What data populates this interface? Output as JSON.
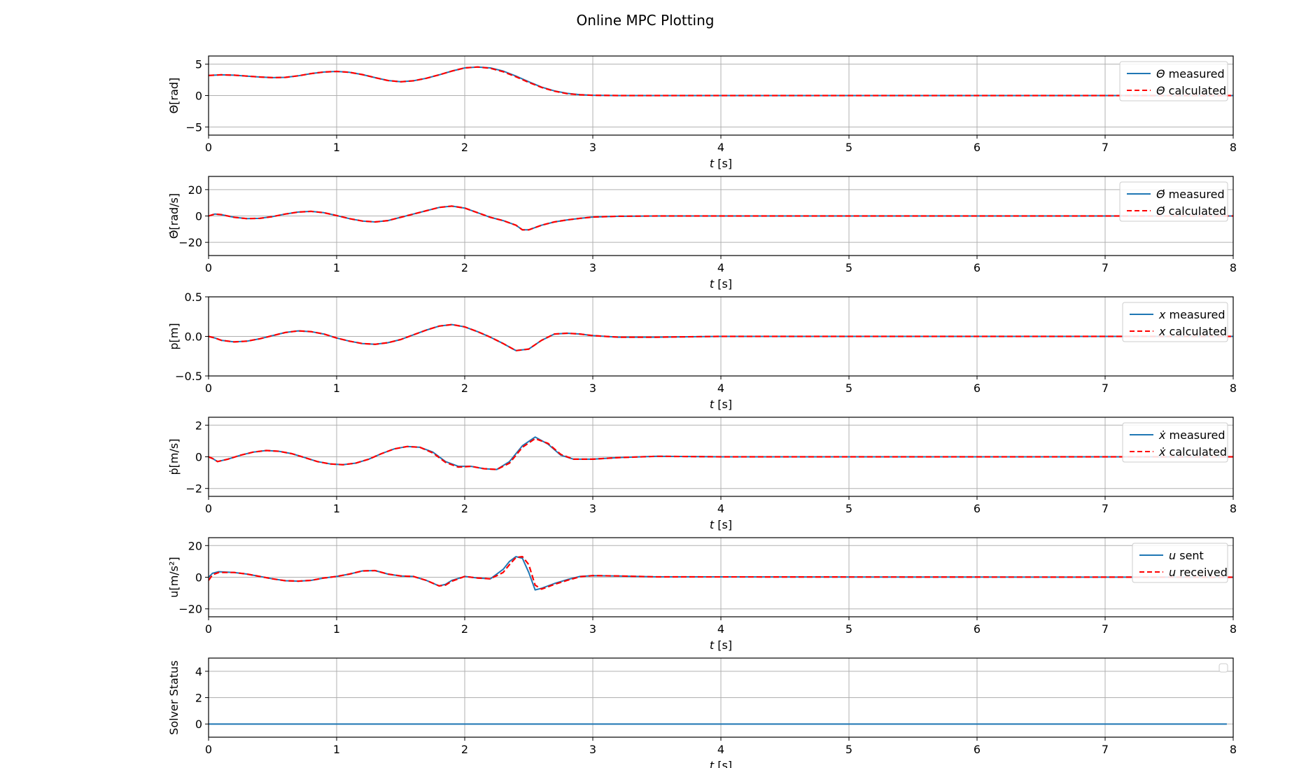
{
  "window": {
    "title": "Online MPC Plotting"
  },
  "colors": {
    "measured": "#1f77b4",
    "calculated": "#ff0000",
    "grid": "#b0b0b0",
    "frame": "#000000"
  },
  "chart_data": [
    {
      "type": "line",
      "ylabel": "Θ[rad]",
      "xlabel_var": "t",
      "xlabel_unit": " [s]",
      "xlim": [
        0,
        8
      ],
      "ylim": [
        -6.3,
        6.3
      ],
      "xticks": [
        0,
        1,
        2,
        3,
        4,
        5,
        6,
        7,
        8
      ],
      "yticks": [
        -5,
        0,
        5
      ],
      "ytick_labels": [
        "−5",
        "0",
        "5"
      ],
      "grid": true,
      "legend_position": "top-right",
      "series": [
        {
          "name": "Θ measured",
          "legend_var": "Θ",
          "legend_suffix": " measured",
          "style": "solid",
          "color": "#1f77b4",
          "x": [
            0,
            0.1,
            0.2,
            0.3,
            0.4,
            0.5,
            0.6,
            0.7,
            0.8,
            0.9,
            1.0,
            1.1,
            1.2,
            1.3,
            1.4,
            1.5,
            1.6,
            1.7,
            1.8,
            1.9,
            2.0,
            2.1,
            2.2,
            2.3,
            2.4,
            2.5,
            2.6,
            2.7,
            2.8,
            2.9,
            3.0,
            3.2,
            3.5,
            4.0,
            8.0
          ],
          "y": [
            3.2,
            3.3,
            3.25,
            3.1,
            2.95,
            2.85,
            2.9,
            3.15,
            3.5,
            3.75,
            3.85,
            3.7,
            3.35,
            2.85,
            2.4,
            2.2,
            2.35,
            2.75,
            3.3,
            3.9,
            4.4,
            4.55,
            4.4,
            3.9,
            3.1,
            2.2,
            1.35,
            0.75,
            0.35,
            0.15,
            0.05,
            0.0,
            0.0,
            0.0,
            0.0
          ]
        },
        {
          "name": "Θ calculated",
          "legend_var": "Θ",
          "legend_suffix": " calculated",
          "style": "dashed",
          "color": "#ff0000",
          "x": [
            0,
            0.1,
            0.2,
            0.3,
            0.4,
            0.5,
            0.6,
            0.7,
            0.8,
            0.9,
            1.0,
            1.1,
            1.2,
            1.3,
            1.4,
            1.5,
            1.6,
            1.7,
            1.8,
            1.9,
            2.0,
            2.1,
            2.2,
            2.3,
            2.4,
            2.5,
            2.6,
            2.7,
            2.8,
            2.9,
            3.0,
            3.2,
            3.5,
            4.0,
            8.0
          ],
          "y": [
            3.2,
            3.3,
            3.25,
            3.1,
            2.95,
            2.85,
            2.9,
            3.15,
            3.5,
            3.75,
            3.85,
            3.7,
            3.35,
            2.85,
            2.4,
            2.2,
            2.35,
            2.75,
            3.3,
            3.9,
            4.4,
            4.55,
            4.35,
            3.8,
            3.0,
            2.1,
            1.3,
            0.7,
            0.3,
            0.12,
            0.04,
            0.0,
            0.0,
            0.0,
            0.0
          ]
        }
      ]
    },
    {
      "type": "line",
      "ylabel": "Θ̇[rad/s]",
      "xlabel_var": "t",
      "xlabel_unit": " [s]",
      "xlim": [
        0,
        8
      ],
      "ylim": [
        -30,
        30
      ],
      "xticks": [
        0,
        1,
        2,
        3,
        4,
        5,
        6,
        7,
        8
      ],
      "yticks": [
        -20,
        0,
        20
      ],
      "ytick_labels": [
        "−20",
        "0",
        "20"
      ],
      "grid": true,
      "legend_position": "top-right",
      "series": [
        {
          "name": "Θ̇ measured",
          "legend_var": "Θ̇",
          "legend_suffix": " measured",
          "style": "solid",
          "color": "#1f77b4",
          "x": [
            0,
            0.05,
            0.1,
            0.2,
            0.3,
            0.4,
            0.5,
            0.6,
            0.7,
            0.8,
            0.9,
            1.0,
            1.1,
            1.2,
            1.3,
            1.4,
            1.5,
            1.6,
            1.7,
            1.8,
            1.9,
            2.0,
            2.1,
            2.2,
            2.3,
            2.4,
            2.45,
            2.5,
            2.6,
            2.7,
            2.8,
            2.9,
            3.0,
            3.2,
            3.5,
            8.0
          ],
          "y": [
            0,
            1.5,
            1.0,
            -1.0,
            -2.0,
            -1.8,
            -0.5,
            1.5,
            3.0,
            3.5,
            2.5,
            0.3,
            -2.0,
            -3.8,
            -4.5,
            -3.5,
            -1.0,
            1.5,
            4.0,
            6.5,
            7.5,
            6.0,
            2.5,
            -1.0,
            -3.5,
            -7.0,
            -10.5,
            -10.5,
            -7.0,
            -4.5,
            -3.0,
            -1.8,
            -0.8,
            -0.2,
            0,
            0
          ]
        },
        {
          "name": "Θ̇ calculated",
          "legend_var": "Θ̇",
          "legend_suffix": " calculated",
          "style": "dashed",
          "color": "#ff0000",
          "x": [
            0,
            0.05,
            0.1,
            0.2,
            0.3,
            0.4,
            0.5,
            0.6,
            0.7,
            0.8,
            0.9,
            1.0,
            1.1,
            1.2,
            1.3,
            1.4,
            1.5,
            1.6,
            1.7,
            1.8,
            1.9,
            2.0,
            2.1,
            2.2,
            2.3,
            2.4,
            2.45,
            2.5,
            2.6,
            2.7,
            2.8,
            2.9,
            3.0,
            3.2,
            3.5,
            8.0
          ],
          "y": [
            0,
            1.5,
            1.0,
            -1.0,
            -2.0,
            -1.8,
            -0.5,
            1.5,
            3.0,
            3.5,
            2.5,
            0.3,
            -2.0,
            -3.8,
            -4.5,
            -3.5,
            -1.0,
            1.5,
            4.0,
            6.5,
            7.5,
            6.0,
            2.5,
            -1.0,
            -3.5,
            -7.0,
            -10.5,
            -10.5,
            -7.0,
            -4.5,
            -3.0,
            -1.8,
            -0.8,
            -0.2,
            0,
            0
          ]
        }
      ]
    },
    {
      "type": "line",
      "ylabel": "p[m]",
      "xlabel_var": "t",
      "xlabel_unit": " [s]",
      "xlim": [
        0,
        8
      ],
      "ylim": [
        -0.5,
        0.5
      ],
      "xticks": [
        0,
        1,
        2,
        3,
        4,
        5,
        6,
        7,
        8
      ],
      "yticks": [
        -0.5,
        0.0,
        0.5
      ],
      "ytick_labels": [
        "−0.5",
        "0.0",
        "0.5"
      ],
      "grid": true,
      "legend_position": "top-right",
      "series": [
        {
          "name": "x measured",
          "legend_var": "x",
          "legend_suffix": " measured",
          "style": "solid",
          "color": "#1f77b4",
          "x": [
            0,
            0.05,
            0.1,
            0.2,
            0.3,
            0.4,
            0.5,
            0.6,
            0.7,
            0.8,
            0.9,
            1.0,
            1.1,
            1.2,
            1.3,
            1.4,
            1.5,
            1.6,
            1.7,
            1.8,
            1.9,
            2.0,
            2.1,
            2.2,
            2.3,
            2.4,
            2.5,
            2.6,
            2.7,
            2.8,
            2.9,
            3.0,
            3.2,
            3.5,
            4.0,
            8.0
          ],
          "y": [
            0,
            -0.02,
            -0.05,
            -0.07,
            -0.06,
            -0.03,
            0.01,
            0.05,
            0.07,
            0.06,
            0.03,
            -0.02,
            -0.06,
            -0.09,
            -0.1,
            -0.08,
            -0.04,
            0.02,
            0.08,
            0.13,
            0.15,
            0.12,
            0.06,
            -0.01,
            -0.09,
            -0.18,
            -0.16,
            -0.05,
            0.03,
            0.04,
            0.03,
            0.01,
            -0.01,
            -0.01,
            0.0,
            0.0
          ]
        },
        {
          "name": "x calculated",
          "legend_var": "x",
          "legend_suffix": " calculated",
          "style": "dashed",
          "color": "#ff0000",
          "x": [
            0,
            0.05,
            0.1,
            0.2,
            0.3,
            0.4,
            0.5,
            0.6,
            0.7,
            0.8,
            0.9,
            1.0,
            1.1,
            1.2,
            1.3,
            1.4,
            1.5,
            1.6,
            1.7,
            1.8,
            1.9,
            2.0,
            2.1,
            2.2,
            2.3,
            2.4,
            2.5,
            2.6,
            2.7,
            2.8,
            2.9,
            3.0,
            3.2,
            3.5,
            4.0,
            8.0
          ],
          "y": [
            0,
            -0.02,
            -0.05,
            -0.07,
            -0.06,
            -0.03,
            0.01,
            0.05,
            0.07,
            0.06,
            0.03,
            -0.02,
            -0.06,
            -0.09,
            -0.1,
            -0.08,
            -0.04,
            0.02,
            0.08,
            0.13,
            0.15,
            0.12,
            0.06,
            -0.01,
            -0.09,
            -0.18,
            -0.16,
            -0.05,
            0.03,
            0.04,
            0.03,
            0.01,
            -0.01,
            -0.01,
            0.0,
            0.0
          ]
        }
      ]
    },
    {
      "type": "line",
      "ylabel": "ṗ[m/s]",
      "xlabel_var": "t",
      "xlabel_unit": " [s]",
      "xlim": [
        0,
        8
      ],
      "ylim": [
        -2.5,
        2.5
      ],
      "xticks": [
        0,
        1,
        2,
        3,
        4,
        5,
        6,
        7,
        8
      ],
      "yticks": [
        -2,
        0,
        2
      ],
      "ytick_labels": [
        "−2",
        "0",
        "2"
      ],
      "grid": true,
      "legend_position": "top-right",
      "series": [
        {
          "name": "ẋ measured",
          "legend_var": "ẋ",
          "legend_suffix": " measured",
          "style": "solid",
          "color": "#1f77b4",
          "x": [
            0,
            0.03,
            0.07,
            0.15,
            0.25,
            0.35,
            0.45,
            0.55,
            0.65,
            0.75,
            0.85,
            0.95,
            1.05,
            1.15,
            1.25,
            1.35,
            1.45,
            1.55,
            1.65,
            1.75,
            1.85,
            1.95,
            2.05,
            2.15,
            2.25,
            2.35,
            2.45,
            2.55,
            2.65,
            2.75,
            2.85,
            3.0,
            3.2,
            3.5,
            4.0,
            8.0
          ],
          "y": [
            0,
            -0.1,
            -0.3,
            -0.15,
            0.1,
            0.3,
            0.4,
            0.35,
            0.2,
            -0.05,
            -0.3,
            -0.45,
            -0.5,
            -0.4,
            -0.15,
            0.2,
            0.5,
            0.65,
            0.6,
            0.3,
            -0.3,
            -0.6,
            -0.6,
            -0.75,
            -0.8,
            -0.3,
            0.7,
            1.25,
            0.8,
            0.1,
            -0.15,
            -0.15,
            -0.05,
            0.03,
            0.0,
            0.0
          ]
        },
        {
          "name": "ẋ calculated",
          "legend_var": "ẋ",
          "legend_suffix": " calculated",
          "style": "dashed",
          "color": "#ff0000",
          "x": [
            0,
            0.03,
            0.07,
            0.15,
            0.25,
            0.35,
            0.45,
            0.55,
            0.65,
            0.75,
            0.85,
            0.95,
            1.05,
            1.15,
            1.25,
            1.35,
            1.45,
            1.55,
            1.65,
            1.75,
            1.85,
            1.95,
            2.05,
            2.15,
            2.25,
            2.35,
            2.45,
            2.55,
            2.65,
            2.75,
            2.85,
            3.0,
            3.2,
            3.5,
            4.0,
            8.0
          ],
          "y": [
            0,
            -0.1,
            -0.3,
            -0.15,
            0.1,
            0.3,
            0.4,
            0.35,
            0.2,
            -0.05,
            -0.3,
            -0.45,
            -0.5,
            -0.4,
            -0.15,
            0.2,
            0.5,
            0.65,
            0.6,
            0.25,
            -0.35,
            -0.65,
            -0.6,
            -0.75,
            -0.8,
            -0.4,
            0.6,
            1.15,
            0.85,
            0.15,
            -0.15,
            -0.15,
            -0.05,
            0.03,
            0.0,
            0.0
          ]
        }
      ]
    },
    {
      "type": "line",
      "ylabel": "u[m/s²]",
      "xlabel_var": "t",
      "xlabel_unit": " [s]",
      "xlim": [
        0,
        8
      ],
      "ylim": [
        -25,
        25
      ],
      "xticks": [
        0,
        1,
        2,
        3,
        4,
        5,
        6,
        7,
        8
      ],
      "yticks": [
        -20,
        0,
        20
      ],
      "ytick_labels": [
        "−20",
        "0",
        "20"
      ],
      "grid": true,
      "legend_position": "top-right",
      "series": [
        {
          "name": "u sent",
          "legend_var": "u",
          "legend_suffix": " sent",
          "style": "solid",
          "color": "#1f77b4",
          "x": [
            0,
            0.03,
            0.08,
            0.2,
            0.3,
            0.4,
            0.5,
            0.6,
            0.7,
            0.8,
            0.9,
            1.0,
            1.1,
            1.2,
            1.3,
            1.4,
            1.5,
            1.6,
            1.7,
            1.8,
            1.85,
            1.9,
            2.0,
            2.1,
            2.2,
            2.3,
            2.35,
            2.4,
            2.45,
            2.5,
            2.55,
            2.6,
            2.7,
            2.8,
            2.9,
            3.0,
            3.2,
            3.5,
            8.0
          ],
          "y": [
            0,
            2.5,
            3.5,
            3.0,
            2.0,
            0.5,
            -1.0,
            -2.2,
            -2.5,
            -2.0,
            -0.5,
            0.5,
            2.0,
            4.0,
            4.2,
            2.0,
            0.8,
            0.5,
            -2.0,
            -5.5,
            -4.5,
            -2.0,
            0.5,
            -0.5,
            -1.0,
            5.0,
            10.0,
            13.0,
            12.0,
            3.0,
            -8.0,
            -7.0,
            -4.0,
            -1.5,
            0.5,
            1.0,
            0.8,
            0.2,
            0.0
          ]
        },
        {
          "name": "u received",
          "legend_var": "u",
          "legend_suffix": " received",
          "style": "dashed",
          "color": "#ff0000",
          "x": [
            0,
            0.03,
            0.08,
            0.2,
            0.3,
            0.4,
            0.5,
            0.6,
            0.7,
            0.8,
            0.9,
            1.0,
            1.1,
            1.2,
            1.3,
            1.4,
            1.5,
            1.6,
            1.7,
            1.8,
            1.85,
            1.9,
            2.0,
            2.1,
            2.2,
            2.3,
            2.35,
            2.4,
            2.45,
            2.5,
            2.55,
            2.6,
            2.7,
            2.8,
            2.9,
            3.0,
            3.2,
            3.5,
            8.0
          ],
          "y": [
            -2.0,
            1.5,
            3.0,
            3.0,
            2.0,
            0.5,
            -1.0,
            -2.2,
            -2.5,
            -2.0,
            -0.5,
            0.5,
            2.0,
            4.0,
            4.2,
            2.0,
            0.8,
            0.5,
            -2.0,
            -5.5,
            -5.0,
            -2.5,
            0.5,
            -0.5,
            -1.0,
            3.0,
            8.0,
            12.5,
            13.0,
            8.0,
            -5.0,
            -7.5,
            -4.5,
            -2.0,
            0.3,
            1.0,
            0.8,
            0.2,
            0.0
          ]
        }
      ]
    },
    {
      "type": "line",
      "ylabel": "Solver Status",
      "xlabel_var": "t",
      "xlabel_unit": " [s]",
      "xlim": [
        0,
        8
      ],
      "ylim": [
        -1,
        5
      ],
      "xticks": [
        0,
        1,
        2,
        3,
        4,
        5,
        6,
        7,
        8
      ],
      "yticks": [
        0,
        2,
        4
      ],
      "ytick_labels": [
        "0",
        "2",
        "4"
      ],
      "grid": true,
      "legend_position": "top-right",
      "series": [
        {
          "style": "solid",
          "color": "#1f77b4",
          "x": [
            0,
            7.95
          ],
          "y": [
            0,
            0
          ]
        }
      ]
    }
  ]
}
